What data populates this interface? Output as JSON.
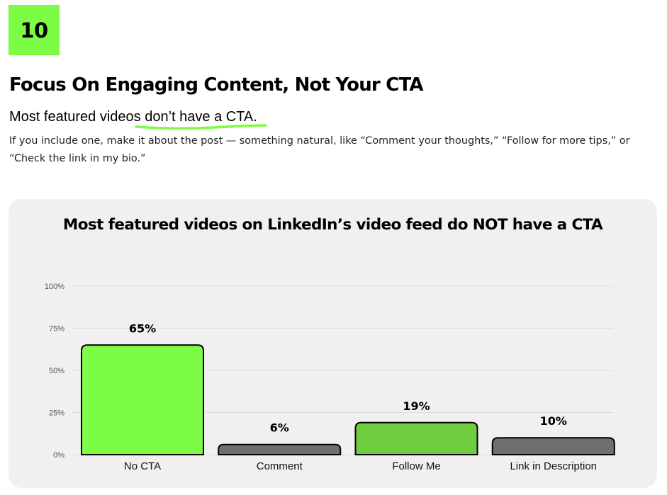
{
  "header": {
    "badge": "10",
    "title": "Focus On Engaging Content, Not Your CTA",
    "subtitle_plain": "Most featured videos ",
    "subtitle_highlight": "don’t have a CTA.",
    "paragraph": "If you include one, make it about the post — something natural, like “Comment your thoughts,” “Follow for more tips,” or “Check the link in my bio.”"
  },
  "colors": {
    "accent": "#7dfc45",
    "highlight_underline": "#7dfc45",
    "card_bg": "#f1eff0",
    "bar_gray": "#6f6f6f"
  },
  "chart_data": {
    "type": "bar",
    "title": "Most featured videos on LinkedIn’s video feed do NOT have a CTA",
    "xlabel": "",
    "ylabel": "",
    "ylim": [
      0,
      100
    ],
    "yticks": [
      "0%",
      "25%",
      "50%",
      "75%",
      "100%"
    ],
    "grid": true,
    "categories": [
      "No CTA",
      "Comment",
      "Follow Me",
      "Link in Description"
    ],
    "values": [
      65,
      6,
      19,
      10
    ],
    "value_labels": [
      "65%",
      "6%",
      "19%",
      "10%"
    ],
    "bar_colors": [
      "#7dfc45",
      "#6f6f6f",
      "#6fcc3f",
      "#6f6f6f"
    ]
  }
}
